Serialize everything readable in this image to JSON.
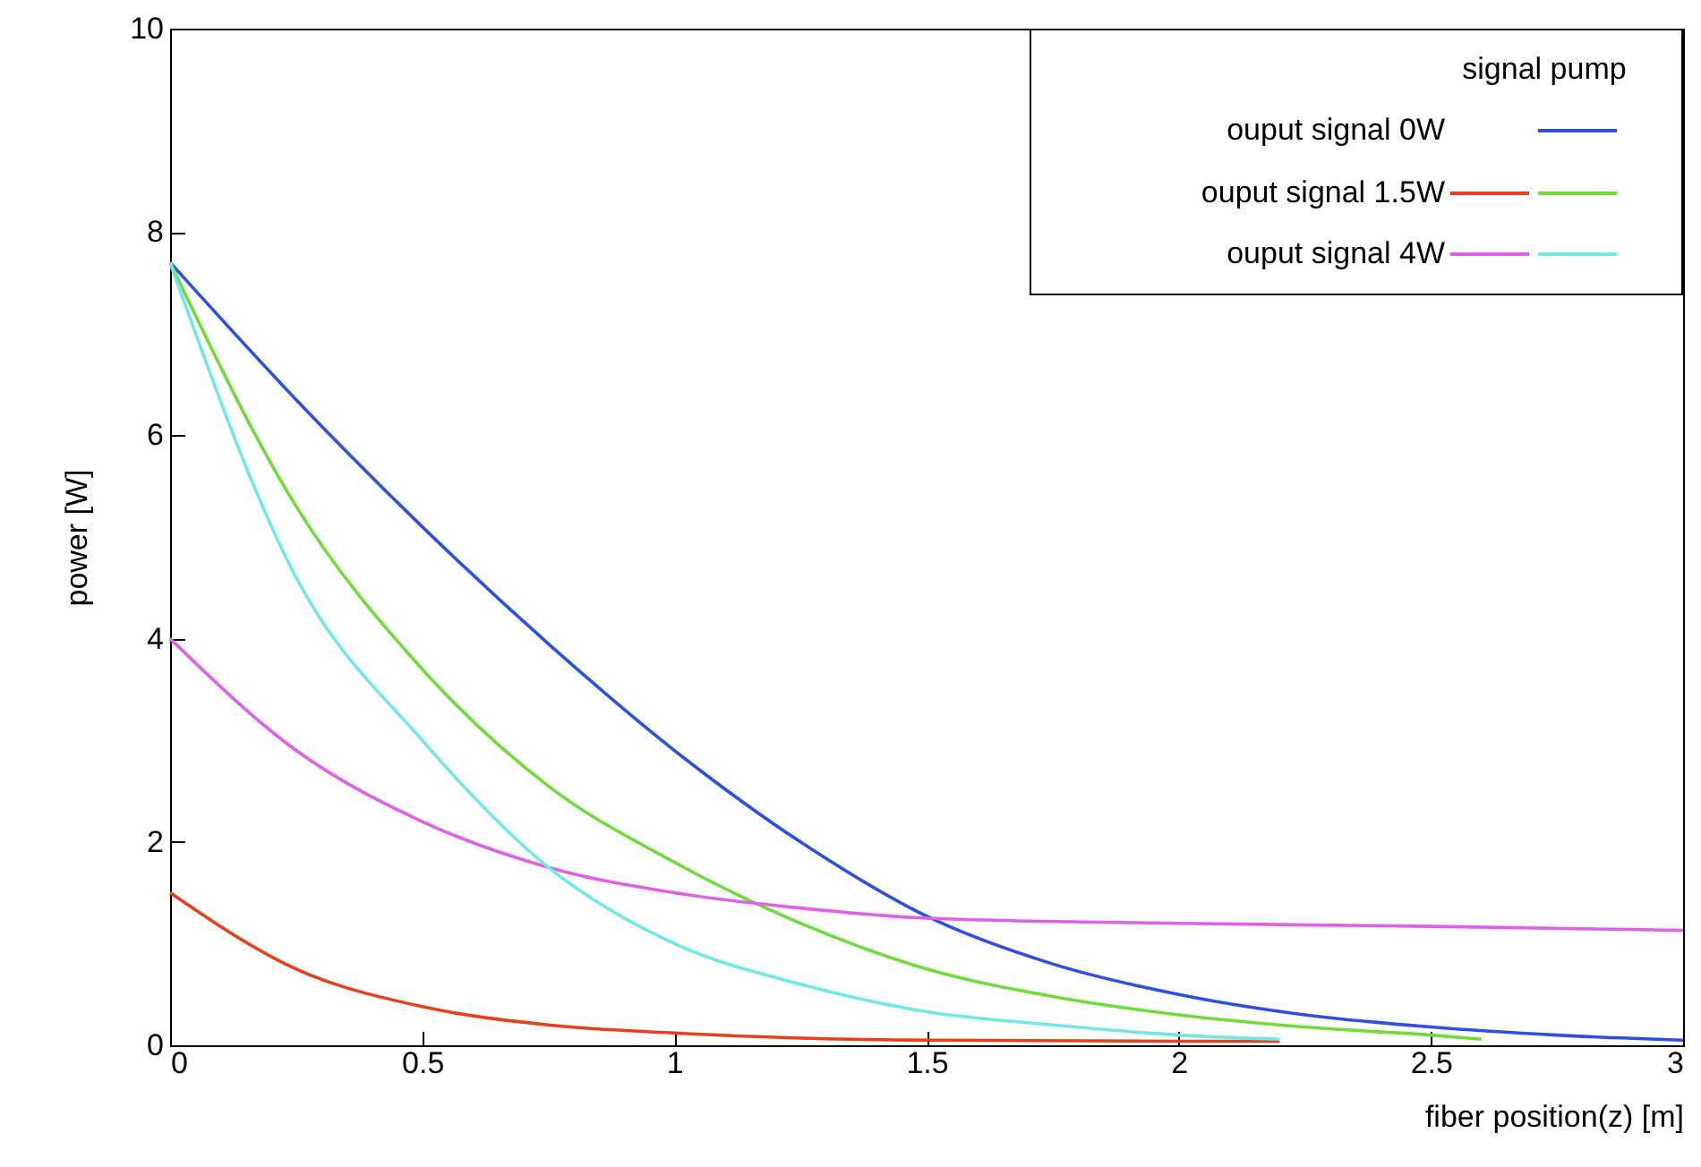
{
  "chart_data": {
    "type": "line",
    "xlabel": "fiber position(z) [m]",
    "ylabel": "power [W]",
    "legend_title": "signal pump",
    "annotations": [
      "ouput signal 0W"
    ],
    "xlim": [
      0,
      3
    ],
    "xticks": [
      0,
      0.5,
      1,
      1.5,
      2,
      2.5,
      3
    ],
    "ylim": [
      0,
      10
    ],
    "yticks": [
      0,
      2,
      4,
      6,
      8,
      10
    ],
    "grid": false,
    "legend": "top right",
    "marker": "none",
    "line_style": "solid",
    "series": [
      {
        "color": "#2b50e6",
        "x": [
          0,
          0.25,
          0.5,
          0.75,
          1,
          1.25,
          1.5,
          1.75,
          2,
          2.25,
          2.5,
          2.75,
          3
        ],
        "values": [
          7.7,
          6.35,
          5.1,
          3.95,
          2.9,
          2.0,
          1.27,
          0.8,
          0.5,
          0.3,
          0.18,
          0.1,
          0.05
        ]
      },
      {
        "name": "ouput signal 1.5W",
        "color": "#e8401c",
        "x": [
          0,
          0.25,
          0.5,
          0.75,
          1,
          1.25,
          1.5,
          2,
          2.2
        ],
        "values": [
          1.5,
          0.75,
          0.38,
          0.2,
          0.12,
          0.07,
          0.05,
          0.04,
          0.04
        ]
      },
      {
        "color": "#6fdc3a",
        "x": [
          0,
          0.25,
          0.5,
          0.75,
          1,
          1.25,
          1.5,
          1.75,
          2,
          2.25,
          2.5,
          2.6
        ],
        "values": [
          7.7,
          5.3,
          3.7,
          2.55,
          1.8,
          1.2,
          0.75,
          0.48,
          0.3,
          0.18,
          0.1,
          0.06
        ]
      },
      {
        "name": "ouput signal 4W",
        "color": "#e060e8",
        "x": [
          0,
          0.25,
          0.5,
          0.75,
          1,
          1.25,
          1.5,
          2,
          2.5,
          3
        ],
        "values": [
          4.0,
          2.9,
          2.2,
          1.75,
          1.5,
          1.35,
          1.25,
          1.2,
          1.17,
          1.13
        ]
      },
      {
        "color": "#70e8e8",
        "x": [
          0,
          0.25,
          0.5,
          0.75,
          1,
          1.25,
          1.5,
          1.75,
          2,
          2.2
        ],
        "values": [
          7.7,
          4.6,
          3.0,
          1.75,
          1.0,
          0.6,
          0.33,
          0.2,
          0.1,
          0.06
        ]
      }
    ]
  }
}
